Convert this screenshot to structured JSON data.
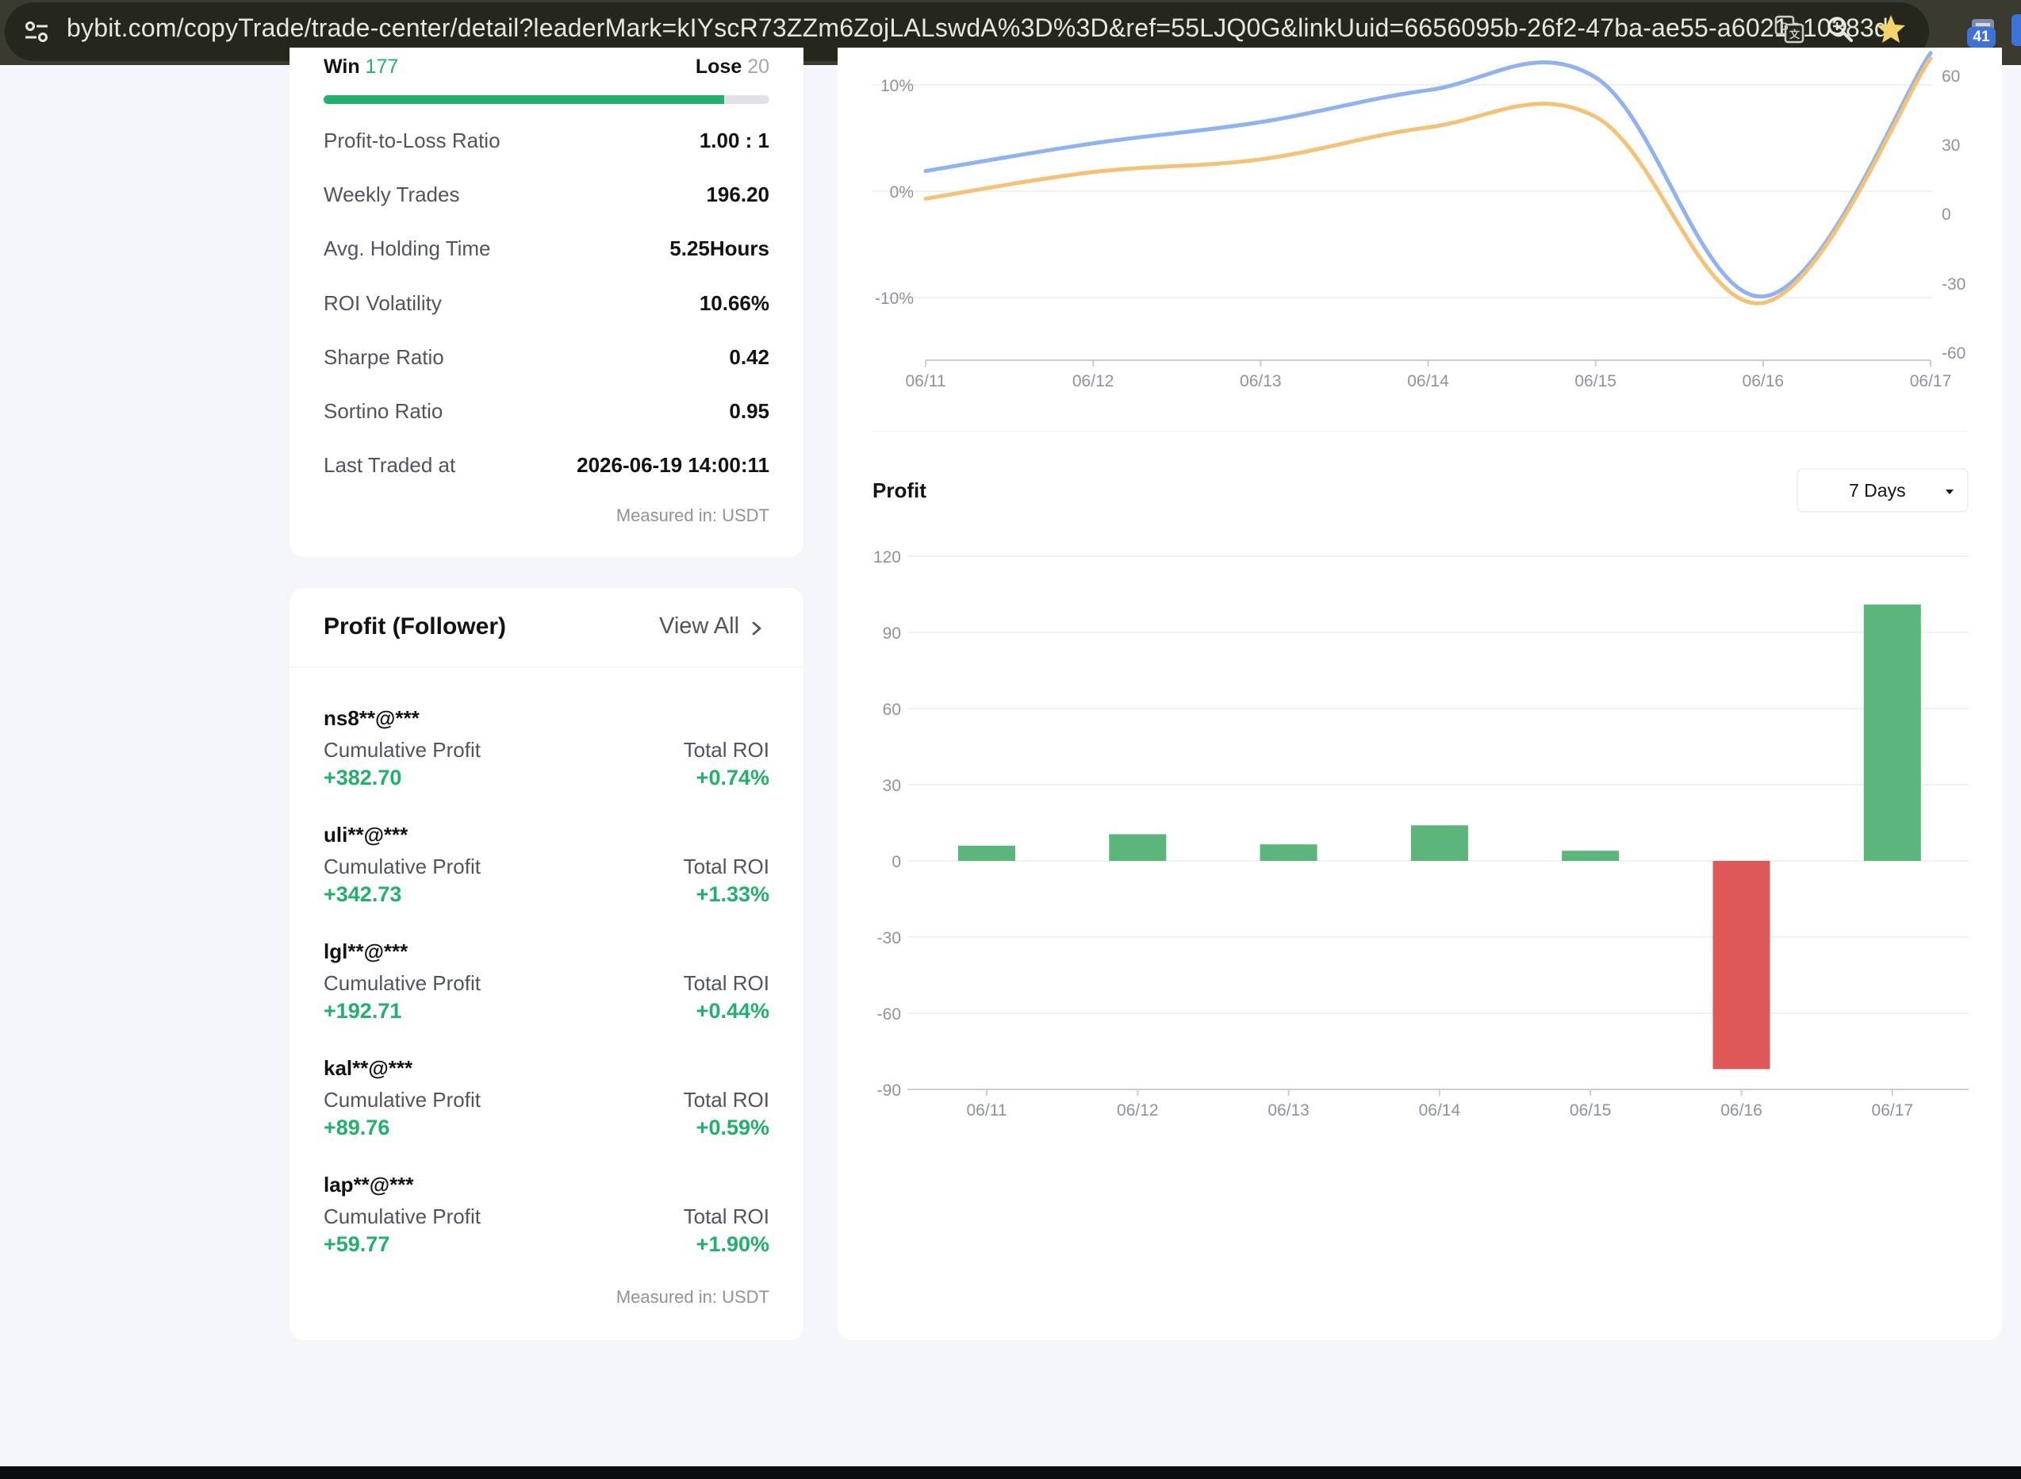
{
  "browser": {
    "url": "bybit.com/copyTrade/trade-center/detail?leaderMark=kIYscR73ZZm6ZojLALswdA%3D%3D&ref=55LJQ0G&linkUuid=6656095b-26f2-47ba-ae55-a6021a10383d",
    "extension_count": "41"
  },
  "stats": {
    "win_label": "Win",
    "win_value": "177",
    "lose_label": "Lose",
    "lose_value": "20",
    "win_fraction": 0.898,
    "rows": [
      {
        "label": "Profit-to-Loss Ratio",
        "value": "1.00 : 1"
      },
      {
        "label": "Weekly Trades",
        "value": "196.20"
      },
      {
        "label": "Avg. Holding Time",
        "value": "5.25Hours"
      },
      {
        "label": "ROI Volatility",
        "value": "10.66%"
      },
      {
        "label": "Sharpe Ratio",
        "value": "0.42"
      },
      {
        "label": "Sortino Ratio",
        "value": "0.95"
      },
      {
        "label": "Last Traded at",
        "value": "2026-06-19 14:00:11"
      }
    ],
    "measured": "Measured in: USDT"
  },
  "followers": {
    "title": "Profit (Follower)",
    "view_all": "View All",
    "cumulative_label": "Cumulative Profit",
    "roi_label": "Total ROI",
    "items": [
      {
        "name": "ns8**@***",
        "profit": "+382.70",
        "roi": "+0.74%"
      },
      {
        "name": "uli**@***",
        "profit": "+342.73",
        "roi": "+1.33%"
      },
      {
        "name": "lgl**@***",
        "profit": "+192.71",
        "roi": "+0.44%"
      },
      {
        "name": "kal**@***",
        "profit": "+89.76",
        "roi": "+0.59%"
      },
      {
        "name": "lap**@***",
        "profit": "+59.77",
        "roi": "+1.90%"
      }
    ],
    "measured": "Measured in: USDT"
  },
  "profit_section": {
    "title": "Profit",
    "period": "7 Days"
  },
  "colors": {
    "green": "#5cb57b",
    "red": "#e05757",
    "roi_line": "#8fb2f4",
    "pnl_line": "#f3c274",
    "text_green": "#20b26c"
  },
  "chart_data": [
    {
      "type": "line",
      "x": [
        "06/11",
        "06/12",
        "06/13",
        "06/14",
        "06/15",
        "06/16",
        "06/17"
      ],
      "left_axis_ticks": [
        "10%",
        "0%",
        "-10%"
      ],
      "right_axis_ticks": [
        "60",
        "30",
        "0",
        "-30",
        "-60"
      ],
      "series": [
        {
          "values": [
            1.9,
            4.5,
            6.5,
            9.5,
            10.7,
            -9.9,
            13.0
          ]
        },
        {
          "values": [
            -0.7,
            1.8,
            3.0,
            6.0,
            7.0,
            -10.5,
            12.5
          ]
        }
      ]
    },
    {
      "type": "bar",
      "categories": [
        "06/11",
        "06/12",
        "06/13",
        "06/14",
        "06/15",
        "06/16",
        "06/17"
      ],
      "values": [
        6,
        10.5,
        6.5,
        14,
        4,
        -82,
        101
      ],
      "yticks": [
        120,
        90,
        60,
        30,
        0,
        -30,
        -60,
        -90
      ],
      "ylim": [
        -90,
        120
      ]
    }
  ]
}
